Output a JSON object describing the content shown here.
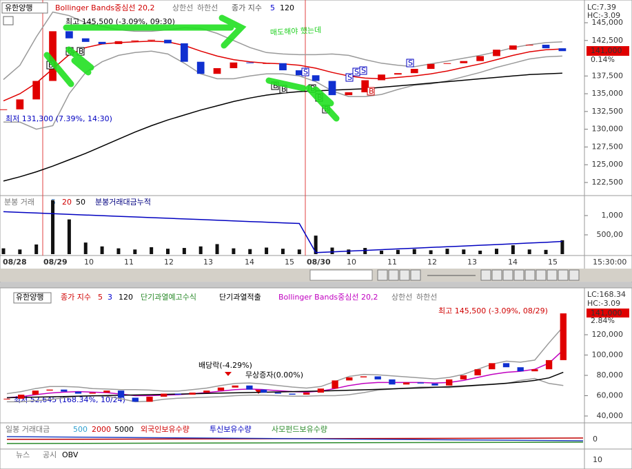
{
  "top_panel": {
    "stock_button": "유한양행",
    "close_index": "종가 지수",
    "ma_short": "5",
    "lc": "LC:7.39",
    "hc": "HC:-3.09",
    "current_price": "141,000",
    "change": "0.14%",
    "high_note": "최고 145,500 (-3.09%, 09:30)",
    "low_note": "최저 131,300 (7.39%, 14:30)",
    "handwriting": "매도해야 했는데",
    "buy_signal": "B",
    "sell_signal": "S"
  },
  "volume_panel": {
    "title": "분봉 거래",
    "ma1": "5",
    "ma2": "20",
    "ma3": "50"
  },
  "dates": [
    "08/28",
    "08/29",
    "10",
    "11",
    "12",
    "13",
    "14",
    "15",
    "08/30",
    "10",
    "11",
    "12",
    "13",
    "14",
    "15"
  ],
  "time": "15:30:00",
  "bottom_panel": {
    "stock_button": "유한양행",
    "close_index": "종가 지수",
    "ma1": "5",
    "ma2": "3",
    "overheat_warning": "단기과열예고수식",
    "overheat_detect": "단기과열적출",
    "lc": "LC:168.34",
    "hc": "HC:-3.09",
    "current_price": "141,000",
    "change": "2.84%",
    "high_note": "최고 145,500 (-3.09%, 08/29)",
    "dividend_note": "배당락(-4.29%)",
    "bonus_note": "무상증자(0.00%)",
    "low_note": "최저 52,645 (168.34%, 10/24)",
    "sub_legend": [
      "일봉 거래대금",
      "500",
      "2000",
      "5000",
      "외국인보유수량",
      "투신보유수량",
      "사모펀드보유수량"
    ],
    "sub_axis": "0",
    "bottom_legend": [
      "뉴스",
      "공시",
      "OBV"
    ],
    "bottom_axis": "10"
  },
  "chart_data": [
    {
      "type": "candlestick",
      "up_color": "#e00000",
      "down_color": "#1030d0",
      "values": [
        132800,
        134200,
        136800,
        143800,
        142800,
        142300,
        142000,
        142400,
        142500,
        142600,
        142100,
        139500,
        137800,
        138600,
        139400,
        139300,
        139300,
        138300,
        137600,
        136800,
        134800,
        135200,
        136900,
        137700,
        137900,
        138500,
        139200,
        139300,
        139600,
        140300,
        141200,
        141800,
        141900,
        141400,
        141000
      ],
      "ylim": [
        120750,
        148200
      ],
      "yticks": [
        {
          "value": 145000,
          "label": "145,000"
        },
        {
          "value": 142500,
          "label": "142,500"
        },
        {
          "value": 137500,
          "label": "137,500"
        },
        {
          "value": 135000,
          "label": "135,000"
        },
        {
          "value": 132500,
          "label": "132,500"
        },
        {
          "value": 130000,
          "label": "130,000"
        },
        {
          "value": 127500,
          "label": "127,500"
        },
        {
          "value": 125000,
          "label": "125,000"
        },
        {
          "value": 122500,
          "label": "122,500"
        }
      ],
      "series": [
        {
          "name": "Bollinger Bands중심선 20,2",
          "color": "#e00000",
          "values": [
            134000,
            135000,
            136500,
            138500,
            140500,
            141500,
            142000,
            142200,
            142300,
            142400,
            142300,
            141800,
            141000,
            140300,
            139800,
            139500,
            139300,
            139200,
            139000,
            138600,
            138000,
            137500,
            137200,
            137100,
            137300,
            137500,
            137800,
            138200,
            138700,
            139200,
            139800,
            140400,
            140900,
            141200,
            141300
          ]
        },
        {
          "name": "상한선",
          "color": "#9a9a9a",
          "values": [
            137000,
            139000,
            143000,
            146500,
            146000,
            145000,
            144500,
            144000,
            143800,
            143800,
            144000,
            144300,
            144200,
            143500,
            142500,
            141500,
            140800,
            140600,
            140500,
            140500,
            140600,
            140400,
            139800,
            139300,
            139000,
            138800,
            139200,
            139600,
            140000,
            140400,
            140900,
            141500,
            141900,
            142200,
            142300
          ]
        },
        {
          "name": "하한선",
          "color": "#9a9a9a",
          "values": [
            131000,
            131000,
            130000,
            130500,
            135000,
            138000,
            139500,
            140400,
            140800,
            141000,
            140600,
            139300,
            137800,
            137100,
            137100,
            137500,
            137800,
            137800,
            137500,
            136700,
            135400,
            134600,
            134600,
            134900,
            135600,
            136200,
            136400,
            136800,
            137400,
            138000,
            138700,
            139300,
            139900,
            140200,
            140300
          ]
        },
        {
          "name": "120",
          "color": "#000000",
          "values": [
            122700,
            123300,
            124000,
            124800,
            125700,
            126600,
            127600,
            128600,
            129600,
            130500,
            131300,
            132000,
            132700,
            133300,
            133900,
            134400,
            134800,
            135100,
            135300,
            135400,
            135500,
            135600,
            135700,
            135900,
            136100,
            136300,
            136500,
            136700,
            136900,
            137100,
            137300,
            137500,
            137700,
            137800,
            137900
          ]
        }
      ]
    },
    {
      "type": "bar",
      "color": "#111111",
      "values": [
        150,
        120,
        250,
        1400,
        900,
        300,
        200,
        150,
        120,
        180,
        140,
        160,
        200,
        260,
        150,
        130,
        170,
        140,
        120,
        480,
        170,
        120,
        160,
        90,
        110,
        130,
        100,
        140,
        120,
        90,
        140,
        230,
        120,
        110,
        360
      ],
      "ylim": [
        0,
        1500
      ],
      "yticks": [
        {
          "value": 1000,
          "label": "1,000"
        },
        {
          "value": 500,
          "label": "500,00"
        }
      ],
      "series": [
        {
          "name": "분봉거래대금누적",
          "color": "#0000c0",
          "values": [
            1100,
            1083,
            1066,
            1049,
            1032,
            1015,
            998,
            981,
            964,
            947,
            930,
            913,
            896,
            879,
            862,
            845,
            828,
            811,
            794,
            40,
            59,
            78,
            97,
            116,
            135,
            154,
            173,
            192,
            211,
            230,
            249,
            268,
            287,
            306,
            330
          ]
        }
      ]
    },
    {
      "type": "candlestick",
      "up_color": "#e00000",
      "down_color": "#1030d0",
      "values": [
        57000,
        61000,
        65000,
        66000,
        64000,
        62000,
        63000,
        65000,
        58000,
        54000,
        59000,
        62000,
        61000,
        63000,
        65000,
        68000,
        70000,
        66000,
        63000,
        62000,
        61000,
        63000,
        67000,
        75000,
        78000,
        79000,
        76000,
        71000,
        73000,
        72000,
        70000,
        76000,
        80000,
        86000,
        92000,
        88000,
        84000,
        86000,
        95000,
        141000
      ],
      "ylim": [
        34600,
        151200
      ],
      "yticks": [
        {
          "value": 120000,
          "label": "120,000"
        },
        {
          "value": 100000,
          "label": "100,000"
        },
        {
          "value": 80000,
          "label": "80,000"
        },
        {
          "value": 60000,
          "label": "60,000"
        },
        {
          "value": 40000,
          "label": "40,000"
        }
      ],
      "series": [
        {
          "name": "Bollinger Bands중심선 20,2",
          "color": "#c000c0",
          "values": [
            58000,
            59000,
            61000,
            62500,
            63500,
            64000,
            63500,
            63000,
            61500,
            60000,
            60000,
            60500,
            61000,
            62000,
            63000,
            64500,
            66000,
            66500,
            66000,
            65000,
            64000,
            63500,
            64500,
            67000,
            70000,
            72000,
            73000,
            73000,
            73000,
            73000,
            72500,
            73000,
            75000,
            78000,
            81000,
            83000,
            84000,
            86000,
            92000,
            105000
          ]
        },
        {
          "name": "상한선",
          "color": "#9a9a9a",
          "values": [
            62000,
            64000,
            67000,
            69000,
            69000,
            68500,
            67000,
            66500,
            66000,
            66000,
            65500,
            64500,
            64500,
            66000,
            67500,
            70000,
            72000,
            72500,
            71500,
            70000,
            68500,
            67500,
            69000,
            74000,
            79000,
            81000,
            80500,
            79500,
            78500,
            77500,
            76500,
            78000,
            81000,
            86000,
            91000,
            94000,
            93000,
            95000,
            112000,
            128000
          ]
        },
        {
          "name": "하한선",
          "color": "#9a9a9a",
          "values": [
            54000,
            54000,
            55000,
            56000,
            58000,
            59500,
            60000,
            59500,
            57000,
            54000,
            54500,
            56500,
            57500,
            58000,
            58500,
            59000,
            60000,
            60500,
            60500,
            60000,
            59500,
            59500,
            60000,
            60000,
            61000,
            63000,
            65500,
            66500,
            67500,
            68500,
            68500,
            68000,
            69000,
            70000,
            71000,
            72000,
            75000,
            77000,
            72000,
            70000
          ]
        },
        {
          "name": "120",
          "color": "#000000",
          "values": [
            58000,
            58300,
            58600,
            58900,
            59200,
            59500,
            59800,
            60100,
            60400,
            60700,
            61000,
            61300,
            61600,
            61900,
            62200,
            62500,
            62800,
            63100,
            63400,
            63700,
            64000,
            64300,
            64600,
            65000,
            65400,
            65800,
            66200,
            66700,
            67200,
            67700,
            68200,
            68800,
            69500,
            70300,
            71200,
            72200,
            73400,
            75000,
            77500,
            83000
          ]
        }
      ]
    }
  ]
}
